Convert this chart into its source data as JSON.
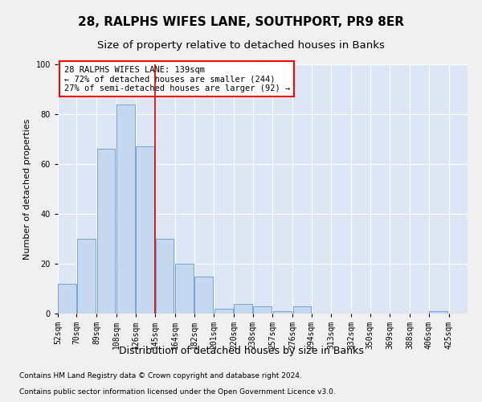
{
  "title": "28, RALPHS WIFES LANE, SOUTHPORT, PR9 8ER",
  "subtitle": "Size of property relative to detached houses in Banks",
  "xlabel": "Distribution of detached houses by size in Banks",
  "ylabel": "Number of detached properties",
  "footnote1": "Contains HM Land Registry data © Crown copyright and database right 2024.",
  "footnote2": "Contains public sector information licensed under the Open Government Licence v3.0.",
  "annotation_line1": "28 RALPHS WIFES LANE: 139sqm",
  "annotation_line2": "← 72% of detached houses are smaller (244)",
  "annotation_line3": "27% of semi-detached houses are larger (92) →",
  "bar_color": "#c5d8f0",
  "bar_edge_color": "#6699cc",
  "bg_color": "#dde6f5",
  "fig_color": "#f0f0f0",
  "ref_line_color": "#cc0000",
  "ref_line_x": 145,
  "categories": [
    "52sqm",
    "70sqm",
    "89sqm",
    "108sqm",
    "126sqm",
    "145sqm",
    "164sqm",
    "182sqm",
    "201sqm",
    "220sqm",
    "238sqm",
    "257sqm",
    "276sqm",
    "294sqm",
    "313sqm",
    "332sqm",
    "350sqm",
    "369sqm",
    "388sqm",
    "406sqm",
    "425sqm"
  ],
  "bin_starts": [
    52,
    70,
    89,
    108,
    126,
    145,
    164,
    182,
    201,
    220,
    238,
    257,
    276,
    294,
    313,
    332,
    350,
    369,
    388,
    406,
    425
  ],
  "bin_width": 18,
  "values": [
    12,
    30,
    66,
    84,
    67,
    30,
    20,
    15,
    2,
    4,
    3,
    1,
    3,
    0,
    0,
    0,
    0,
    0,
    0,
    1,
    0
  ],
  "ylim": [
    0,
    100
  ],
  "yticks": [
    0,
    20,
    40,
    60,
    80,
    100
  ],
  "grid_color": "#ffffff",
  "title_fontsize": 11,
  "subtitle_fontsize": 9.5,
  "ylabel_fontsize": 8,
  "xlabel_fontsize": 9,
  "tick_fontsize": 7,
  "annotation_fontsize": 7.5,
  "footnote_fontsize": 6.5
}
